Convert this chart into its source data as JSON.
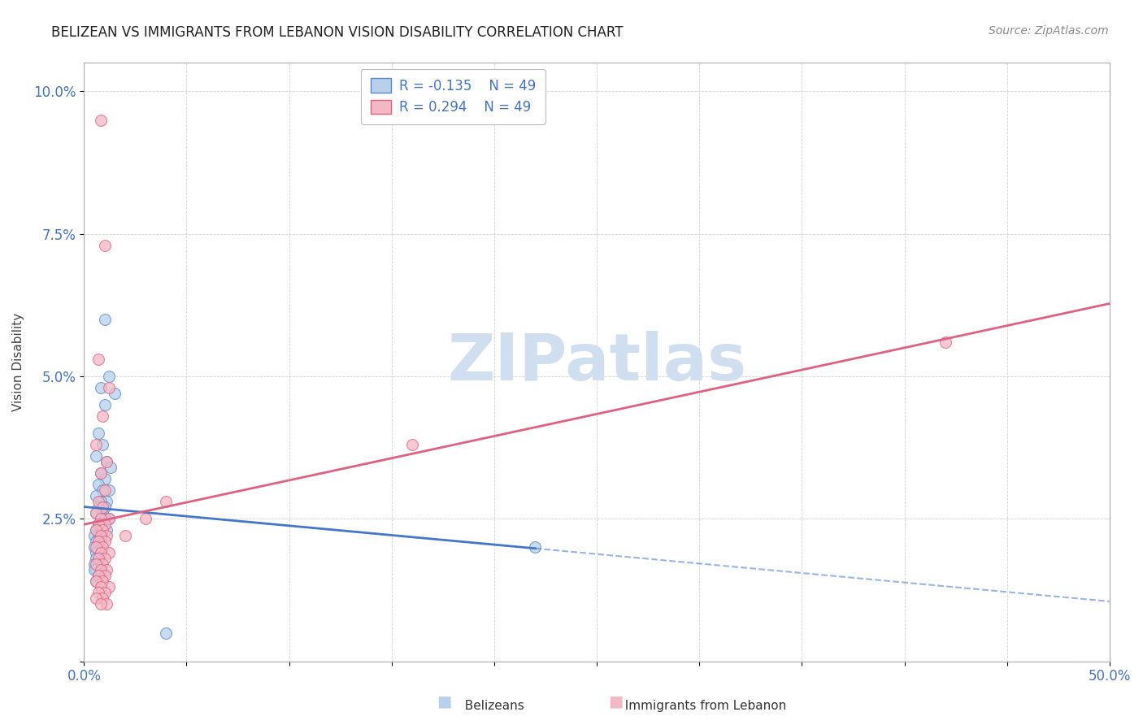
{
  "title": "BELIZEAN VS IMMIGRANTS FROM LEBANON VISION DISABILITY CORRELATION CHART",
  "source": "Source: ZipAtlas.com",
  "ylabel": "Vision Disability",
  "xlim": [
    0.0,
    0.5
  ],
  "ylim": [
    0.0,
    0.105
  ],
  "yticks": [
    0.0,
    0.025,
    0.05,
    0.075,
    0.1
  ],
  "ytick_labels": [
    "",
    "2.5%",
    "5.0%",
    "7.5%",
    "10.0%"
  ],
  "xtick_positions": [
    0.0,
    0.05,
    0.1,
    0.15,
    0.2,
    0.25,
    0.3,
    0.35,
    0.4,
    0.45,
    0.5
  ],
  "xtick_labels": [
    "0.0%",
    "",
    "",
    "",
    "",
    "",
    "",
    "",
    "",
    "",
    "50.0%"
  ],
  "belizean_R": -0.135,
  "lebanon_R": 0.294,
  "N": 49,
  "background_color": "#ffffff",
  "blue_fill": "#b8d0ea",
  "pink_fill": "#f2b8c6",
  "blue_edge": "#5588cc",
  "pink_edge": "#e06080",
  "blue_line": "#4477cc",
  "pink_line": "#e06080",
  "watermark_color": "#d0dff0",
  "belizean_x": [
    0.01,
    0.012,
    0.008,
    0.015,
    0.01,
    0.007,
    0.009,
    0.006,
    0.011,
    0.013,
    0.008,
    0.01,
    0.007,
    0.012,
    0.009,
    0.006,
    0.011,
    0.008,
    0.01,
    0.007,
    0.009,
    0.006,
    0.012,
    0.008,
    0.01,
    0.007,
    0.009,
    0.006,
    0.011,
    0.008,
    0.005,
    0.007,
    0.006,
    0.008,
    0.007,
    0.005,
    0.006,
    0.008,
    0.007,
    0.006,
    0.005,
    0.007,
    0.006,
    0.005,
    0.008,
    0.007,
    0.006,
    0.22,
    0.04
  ],
  "belizean_y": [
    0.06,
    0.05,
    0.048,
    0.047,
    0.045,
    0.04,
    0.038,
    0.036,
    0.035,
    0.034,
    0.033,
    0.032,
    0.031,
    0.03,
    0.03,
    0.029,
    0.028,
    0.028,
    0.027,
    0.027,
    0.026,
    0.026,
    0.025,
    0.025,
    0.025,
    0.024,
    0.024,
    0.023,
    0.023,
    0.023,
    0.022,
    0.022,
    0.021,
    0.021,
    0.02,
    0.02,
    0.019,
    0.019,
    0.018,
    0.018,
    0.017,
    0.017,
    0.016,
    0.016,
    0.015,
    0.015,
    0.014,
    0.02,
    0.005
  ],
  "lebanon_x": [
    0.008,
    0.01,
    0.007,
    0.012,
    0.009,
    0.006,
    0.011,
    0.008,
    0.01,
    0.007,
    0.009,
    0.006,
    0.012,
    0.008,
    0.01,
    0.007,
    0.009,
    0.006,
    0.011,
    0.008,
    0.01,
    0.007,
    0.009,
    0.006,
    0.012,
    0.008,
    0.01,
    0.007,
    0.009,
    0.006,
    0.011,
    0.008,
    0.01,
    0.007,
    0.009,
    0.006,
    0.012,
    0.008,
    0.01,
    0.007,
    0.009,
    0.006,
    0.011,
    0.008,
    0.02,
    0.03,
    0.04,
    0.42,
    0.16
  ],
  "lebanon_y": [
    0.095,
    0.073,
    0.053,
    0.048,
    0.043,
    0.038,
    0.035,
    0.033,
    0.03,
    0.028,
    0.027,
    0.026,
    0.025,
    0.025,
    0.024,
    0.024,
    0.023,
    0.023,
    0.022,
    0.022,
    0.021,
    0.021,
    0.02,
    0.02,
    0.019,
    0.019,
    0.018,
    0.018,
    0.017,
    0.017,
    0.016,
    0.016,
    0.015,
    0.015,
    0.014,
    0.014,
    0.013,
    0.013,
    0.012,
    0.012,
    0.011,
    0.011,
    0.01,
    0.01,
    0.022,
    0.025,
    0.028,
    0.056,
    0.038
  ]
}
